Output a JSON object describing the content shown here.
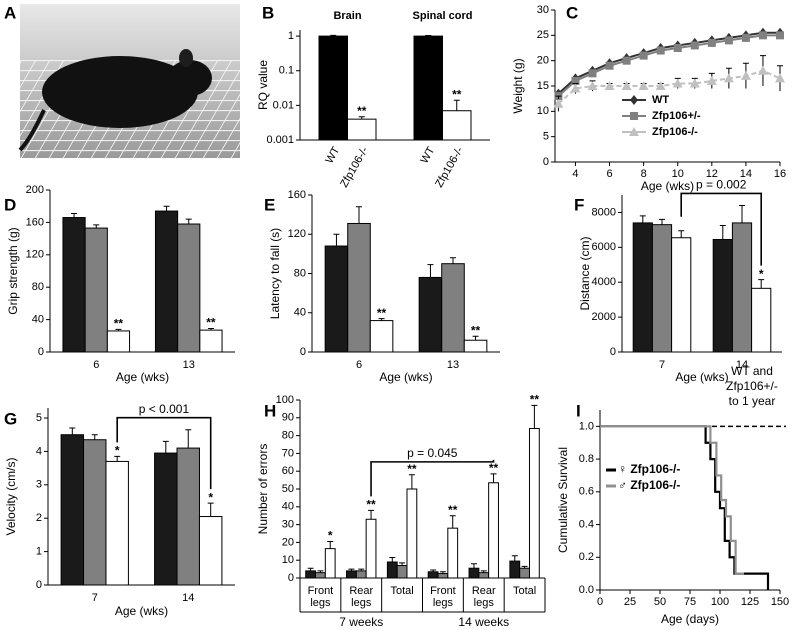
{
  "photo": {
    "label": "A"
  },
  "chart_data": [
    {
      "label": "B",
      "type": "bar",
      "log": true,
      "categories": [
        "Brain",
        "Spinal cord"
      ],
      "series": [
        {
          "name": "WT",
          "color": "#000000",
          "values": [
            1,
            1
          ],
          "errors": [
            0.05,
            0.04
          ]
        },
        {
          "name": "Zfp106-/-",
          "color": "#ffffff",
          "values": [
            0.004,
            0.007
          ],
          "errors": [
            0.0007,
            0.007
          ]
        }
      ],
      "ylim": [
        0.001,
        1.5
      ],
      "yticks": [
        0.001,
        0.01,
        0.1,
        1
      ],
      "ylabel": "RQ value",
      "annotations": [
        {
          "text": "**",
          "series": 1,
          "index": 0
        },
        {
          "text": "**",
          "series": 1,
          "index": 1
        }
      ]
    },
    {
      "label": "C",
      "type": "line",
      "x": [
        3,
        4,
        5,
        6,
        7,
        8,
        9,
        10,
        11,
        12,
        13,
        14,
        15,
        16
      ],
      "xlim": [
        2.8,
        16
      ],
      "xticks": [
        4,
        6,
        8,
        10,
        12,
        14,
        16
      ],
      "ylim": [
        0,
        30
      ],
      "yticks": [
        0,
        5,
        10,
        15,
        20,
        25,
        30
      ],
      "xlabel": "Age (wks)",
      "ylabel": "Weight (g)",
      "series": [
        {
          "name": "WT",
          "color": "#333333",
          "marker": "diamond",
          "values": [
            13.5,
            16.5,
            18,
            19.5,
            20.5,
            21.5,
            22.5,
            23,
            23.5,
            24,
            24.5,
            25,
            25.5,
            25.5
          ]
        },
        {
          "name": "Zfp106+/-",
          "color": "#808080",
          "marker": "square",
          "values": [
            13,
            16,
            17.5,
            19,
            20,
            21,
            22,
            22.5,
            23,
            23.5,
            24,
            24.5,
            25,
            25
          ]
        },
        {
          "name": "Zfp106-/-",
          "color": "#c0c0c0",
          "marker": "triangle",
          "values": [
            11.5,
            14.5,
            15,
            15,
            15,
            15,
            15,
            15.5,
            15.5,
            16,
            16.5,
            17,
            18,
            16.5
          ],
          "errors": [
            1.5,
            1,
            1,
            0.5,
            0.5,
            0.5,
            0.5,
            1,
            1,
            1.5,
            2,
            2.5,
            3,
            2.5
          ]
        }
      ]
    },
    {
      "label": "D",
      "type": "bar",
      "categories": [
        "6",
        "13"
      ],
      "xlabel": "Age (wks)",
      "ylabel": "Grip strength (g)",
      "ylim": [
        0,
        200
      ],
      "yticks": [
        0,
        40,
        80,
        120,
        160,
        200
      ],
      "series": [
        {
          "color": "#1a1a1a",
          "values": [
            166,
            174
          ],
          "errors": [
            5,
            6
          ]
        },
        {
          "color": "#808080",
          "values": [
            153,
            158
          ],
          "errors": [
            4,
            6
          ]
        },
        {
          "color": "#ffffff",
          "values": [
            26,
            27
          ],
          "errors": [
            2,
            2
          ]
        }
      ],
      "annotations": [
        {
          "text": "**",
          "series": 2,
          "index": 0
        },
        {
          "text": "**",
          "series": 2,
          "index": 1
        }
      ]
    },
    {
      "label": "E",
      "type": "bar",
      "categories": [
        "6",
        "13"
      ],
      "xlabel": "Age (wks)",
      "ylabel": "Latency to fall (s)",
      "ylim": [
        0,
        160
      ],
      "yticks": [
        0,
        40,
        80,
        120,
        160
      ],
      "series": [
        {
          "color": "#1a1a1a",
          "values": [
            108,
            76
          ],
          "errors": [
            12,
            13
          ]
        },
        {
          "color": "#808080",
          "values": [
            131,
            90
          ],
          "errors": [
            17,
            6
          ]
        },
        {
          "color": "#ffffff",
          "values": [
            32,
            12
          ],
          "errors": [
            2,
            4
          ]
        }
      ],
      "annotations": [
        {
          "text": "**",
          "series": 2,
          "index": 0
        },
        {
          "text": "**",
          "series": 2,
          "index": 1
        }
      ]
    },
    {
      "label": "F",
      "type": "bar",
      "categories": [
        "7",
        "14"
      ],
      "xlabel": "Age (wks)",
      "ylabel": "Distance (cm)",
      "ylim": [
        0,
        9000
      ],
      "yticks": [
        0,
        2000,
        4000,
        6000,
        8000
      ],
      "series": [
        {
          "color": "#1a1a1a",
          "values": [
            7400,
            6450
          ],
          "errors": [
            400,
            800
          ]
        },
        {
          "color": "#808080",
          "values": [
            7300,
            7400
          ],
          "errors": [
            300,
            1000
          ]
        },
        {
          "color": "#ffffff",
          "values": [
            6550,
            3650
          ],
          "errors": [
            400,
            500
          ]
        }
      ],
      "annotations": [
        {
          "text": "*",
          "series": 2,
          "index": 1
        }
      ],
      "brackets": [
        {
          "text": "p = 0.002",
          "from": [
            2,
            0
          ],
          "to": [
            2,
            1
          ]
        }
      ]
    },
    {
      "label": "G",
      "type": "bar",
      "categories": [
        "7",
        "14"
      ],
      "xlabel": "Age (wks)",
      "ylabel": "Velocity (cm/s)",
      "ylim": [
        0,
        5.3
      ],
      "yticks": [
        0,
        1,
        2,
        3,
        4,
        5
      ],
      "series": [
        {
          "color": "#1a1a1a",
          "values": [
            4.5,
            3.95
          ],
          "errors": [
            0.2,
            0.35
          ]
        },
        {
          "color": "#808080",
          "values": [
            4.35,
            4.1
          ],
          "errors": [
            0.15,
            0.55
          ]
        },
        {
          "color": "#ffffff",
          "values": [
            3.7,
            2.05
          ],
          "errors": [
            0.15,
            0.4
          ]
        }
      ],
      "annotations": [
        {
          "text": "*",
          "series": 2,
          "index": 0
        },
        {
          "text": "*",
          "series": 2,
          "index": 1
        }
      ],
      "brackets": [
        {
          "text": "p < 0.001",
          "from": [
            2,
            0
          ],
          "to": [
            2,
            1
          ]
        }
      ]
    },
    {
      "label": "H",
      "type": "bar",
      "categories": [
        [
          "Front",
          "legs"
        ],
        [
          "Rear",
          "legs"
        ],
        [
          "Total"
        ],
        [
          "Front",
          "legs"
        ],
        [
          "Rear",
          "legs"
        ],
        [
          "Total"
        ]
      ],
      "groups": [
        "7 weeks",
        "14 weeks"
      ],
      "ylabel": "Number of errors",
      "ylim": [
        0,
        100
      ],
      "yticks": [
        0,
        10,
        20,
        30,
        40,
        50,
        60,
        70,
        80,
        90,
        100
      ],
      "series": [
        {
          "color": "#1a1a1a",
          "values": [
            4,
            4,
            9,
            3.5,
            5.5,
            9.5
          ],
          "errors": [
            1.5,
            1,
            2.5,
            1,
            2.5,
            3
          ]
        },
        {
          "color": "#808080",
          "values": [
            3,
            4,
            7,
            2.5,
            3,
            5.5
          ],
          "errors": [
            1,
            1,
            1.5,
            1,
            1,
            1
          ]
        },
        {
          "color": "#ffffff",
          "values": [
            16.5,
            33,
            50,
            28,
            53.5,
            84
          ],
          "errors": [
            4,
            5,
            8,
            7,
            5,
            13
          ]
        }
      ],
      "annotations": [
        {
          "text": "*",
          "series": 2,
          "index": 0
        },
        {
          "text": "**",
          "series": 2,
          "index": 1
        },
        {
          "text": "**",
          "series": 2,
          "index": 2
        },
        {
          "text": "**",
          "series": 2,
          "index": 3
        },
        {
          "text": "**",
          "series": 2,
          "index": 4
        },
        {
          "text": "**",
          "series": 2,
          "index": 5
        }
      ],
      "brackets": [
        {
          "text": "p = 0.045",
          "from": [
            2,
            1
          ],
          "to": [
            2,
            4
          ]
        }
      ]
    },
    {
      "label": "I",
      "type": "step",
      "xlim": [
        0,
        150
      ],
      "xticks": [
        0,
        25,
        50,
        75,
        100,
        125,
        150
      ],
      "ylim": [
        0,
        1.1
      ],
      "yticks": [
        {
          "value": 0,
          "label": "0.0"
        },
        0.2,
        0.4,
        0.6,
        0.8,
        {
          "value": 1,
          "label": "1.0"
        }
      ],
      "xlabel": "Age (days)",
      "ylabel": "Cumulative Survival",
      "series": [
        {
          "name": "♀ Zfp106-/-",
          "color": "#000000",
          "x": [
            0,
            88,
            92,
            96,
            100,
            104,
            108,
            112,
            140
          ],
          "values": [
            1,
            0.9,
            0.8,
            0.6,
            0.5,
            0.3,
            0.2,
            0.1,
            0
          ]
        },
        {
          "name": "♂ Zfp106-/-",
          "color": "#909090",
          "x": [
            0,
            92,
            97,
            101,
            105,
            109,
            113,
            120
          ],
          "values": [
            1,
            0.9,
            0.7,
            0.55,
            0.45,
            0.3,
            0.1,
            0.1
          ]
        }
      ],
      "reference_line": {
        "value": 1,
        "label": [
          "WT and",
          "Zfp106+/-",
          "to 1 year"
        ]
      }
    }
  ]
}
